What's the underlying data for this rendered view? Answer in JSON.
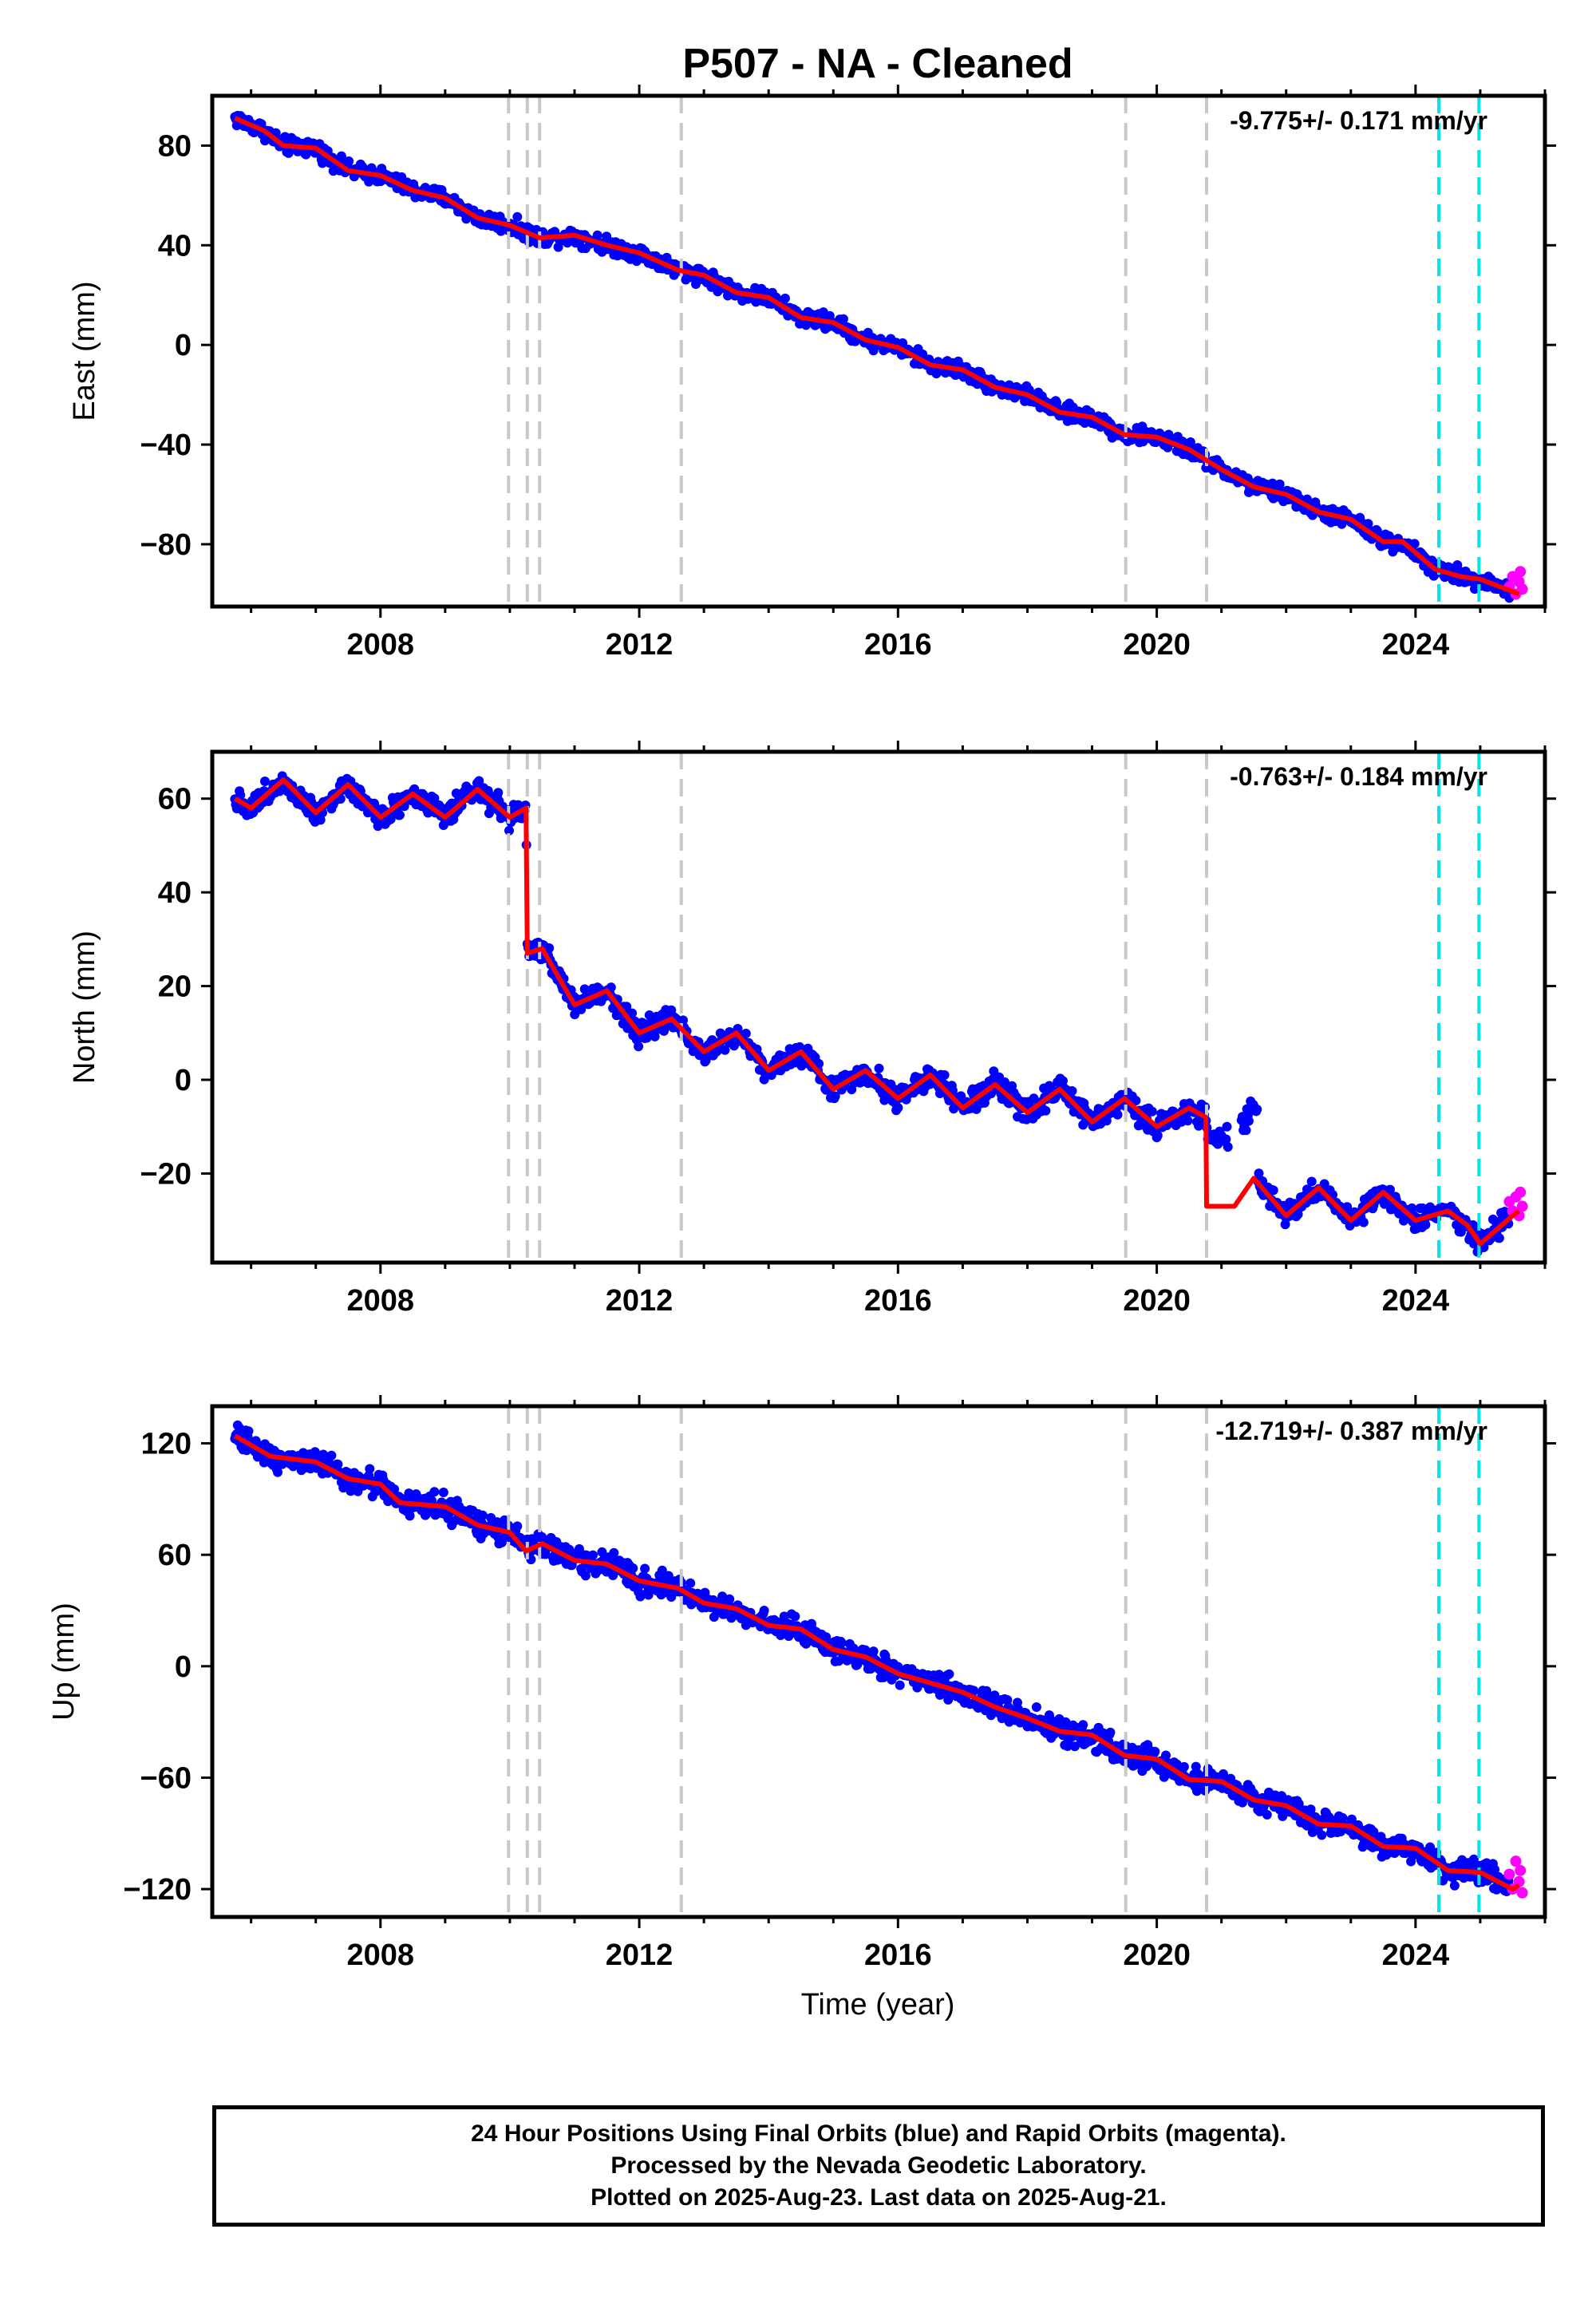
{
  "title": "P507  - NA - Cleaned",
  "xlabel": "Time (year)",
  "colors": {
    "final_orbits": "#0000ff",
    "rapid_orbits": "#ff00ff",
    "model": "#ff0000",
    "equipment_lines": "#c8c8c8",
    "earthquake_lines": "#00e6e6"
  },
  "chart_data": [
    {
      "type": "scatter",
      "panel": "east",
      "ylabel": "East (mm)",
      "rate_label": "-9.775+/- 0.171 mm/yr",
      "xlim": [
        2005.4,
        2026.0
      ],
      "ylim": [
        -105,
        100
      ],
      "x_ticks": [
        2008,
        2012,
        2016,
        2020,
        2024
      ],
      "y_ticks": [
        80,
        40,
        0,
        -40,
        -80
      ],
      "y_tick_labels": [
        "80",
        "40",
        "0",
        "−40",
        "−80"
      ],
      "start": [
        2005.75,
        90
      ],
      "rate": -9.775,
      "noise": 2.0,
      "seasonal_amp": 1.5,
      "steps": [],
      "gray_lines": [
        2009.98,
        2010.27,
        2010.46,
        2012.65,
        2019.52,
        2020.77
      ],
      "cyan_lines": [
        2024.36,
        2024.98
      ],
      "model_points": [
        [
          2005.75,
          91
        ],
        [
          2006.2,
          86
        ],
        [
          2006.5,
          80
        ],
        [
          2007.0,
          79
        ],
        [
          2007.5,
          70
        ],
        [
          2008.0,
          68
        ],
        [
          2008.5,
          62
        ],
        [
          2009.0,
          59
        ],
        [
          2009.5,
          51
        ],
        [
          2010.0,
          48
        ],
        [
          2010.46,
          43
        ],
        [
          2011.0,
          44
        ],
        [
          2011.5,
          40
        ],
        [
          2012.0,
          37
        ],
        [
          2012.6,
          30
        ],
        [
          2013.0,
          28
        ],
        [
          2013.5,
          21
        ],
        [
          2014.0,
          19
        ],
        [
          2014.5,
          11
        ],
        [
          2015.0,
          9
        ],
        [
          2015.5,
          2
        ],
        [
          2016.0,
          -1
        ],
        [
          2016.5,
          -8
        ],
        [
          2017.0,
          -10
        ],
        [
          2017.5,
          -17
        ],
        [
          2018.0,
          -20
        ],
        [
          2018.5,
          -27
        ],
        [
          2019.0,
          -29
        ],
        [
          2019.5,
          -36
        ],
        [
          2020.0,
          -37
        ],
        [
          2020.5,
          -42
        ],
        [
          2021.0,
          -50
        ],
        [
          2021.5,
          -57
        ],
        [
          2022.0,
          -60
        ],
        [
          2022.5,
          -67
        ],
        [
          2023.0,
          -70
        ],
        [
          2023.5,
          -79
        ],
        [
          2023.8,
          -79
        ],
        [
          2024.3,
          -90
        ],
        [
          2024.7,
          -93
        ],
        [
          2025.0,
          -94
        ],
        [
          2025.6,
          -100
        ]
      ],
      "rapid_points": [
        [
          2025.45,
          -97
        ],
        [
          2025.5,
          -93
        ],
        [
          2025.55,
          -100
        ],
        [
          2025.6,
          -95
        ],
        [
          2025.62,
          -91
        ],
        [
          2025.65,
          -98
        ]
      ]
    },
    {
      "type": "scatter",
      "panel": "north",
      "ylabel": "North (mm)",
      "rate_label": "-0.763+/- 0.184 mm/yr",
      "xlim": [
        2005.4,
        2026.0
      ],
      "ylim": [
        -39,
        70
      ],
      "x_ticks": [
        2008,
        2012,
        2016,
        2020,
        2024
      ],
      "y_ticks": [
        60,
        40,
        20,
        0,
        -20
      ],
      "y_tick_labels": [
        "60",
        "40",
        "20",
        "0",
        "−20"
      ],
      "start": [
        2005.75,
        58
      ],
      "rate": -0.763,
      "noise": 1.5,
      "seasonal_amp": 3.5,
      "steps": [
        [
          2010.27,
          -30
        ],
        [
          2020.77,
          -17
        ]
      ],
      "gray_lines": [
        2009.98,
        2010.27,
        2010.46,
        2012.65,
        2019.52,
        2020.77
      ],
      "cyan_lines": [
        2024.36,
        2024.98
      ],
      "model_points": [
        [
          2005.75,
          60
        ],
        [
          2006.0,
          58
        ],
        [
          2006.5,
          64
        ],
        [
          2007.0,
          57
        ],
        [
          2007.5,
          63
        ],
        [
          2008.0,
          56
        ],
        [
          2008.5,
          61
        ],
        [
          2009.0,
          56
        ],
        [
          2009.5,
          62
        ],
        [
          2010.0,
          56
        ],
        [
          2010.25,
          58
        ],
        [
          2010.27,
          27
        ],
        [
          2010.5,
          28
        ],
        [
          2011.0,
          16
        ],
        [
          2011.5,
          19
        ],
        [
          2012.0,
          10
        ],
        [
          2012.5,
          13
        ],
        [
          2013.0,
          6
        ],
        [
          2013.5,
          10
        ],
        [
          2014.0,
          2
        ],
        [
          2014.5,
          6
        ],
        [
          2015.0,
          -2
        ],
        [
          2015.5,
          2
        ],
        [
          2016.0,
          -4
        ],
        [
          2016.5,
          1
        ],
        [
          2017.0,
          -6
        ],
        [
          2017.5,
          -1
        ],
        [
          2018.0,
          -7
        ],
        [
          2018.5,
          -2
        ],
        [
          2019.0,
          -9
        ],
        [
          2019.5,
          -4
        ],
        [
          2020.0,
          -10
        ],
        [
          2020.5,
          -6
        ],
        [
          2020.76,
          -8
        ],
        [
          2020.77,
          -27
        ],
        [
          2021.2,
          -27
        ],
        [
          2021.5,
          -21
        ],
        [
          2022.0,
          -29
        ],
        [
          2022.5,
          -23
        ],
        [
          2023.0,
          -30
        ],
        [
          2023.5,
          -24
        ],
        [
          2024.0,
          -30
        ],
        [
          2024.5,
          -28
        ],
        [
          2024.8,
          -31
        ],
        [
          2025.0,
          -35
        ],
        [
          2025.5,
          -29
        ],
        [
          2025.6,
          -28
        ]
      ],
      "rapid_points": [
        [
          2025.45,
          -26
        ],
        [
          2025.5,
          -28
        ],
        [
          2025.55,
          -25
        ],
        [
          2025.6,
          -29
        ],
        [
          2025.62,
          -24
        ],
        [
          2025.65,
          -27
        ]
      ]
    },
    {
      "type": "scatter",
      "panel": "up",
      "ylabel": "Up (mm)",
      "rate_label": "-12.719+/- 0.387 mm/yr",
      "xlim": [
        2005.4,
        2026.0
      ],
      "ylim": [
        -135,
        140
      ],
      "x_ticks": [
        2008,
        2012,
        2016,
        2020,
        2024
      ],
      "y_ticks": [
        120,
        60,
        0,
        -60,
        -120
      ],
      "y_tick_labels": [
        "120",
        "60",
        "0",
        "−60",
        "−120"
      ],
      "start": [
        2005.75,
        127
      ],
      "rate": -12.719,
      "noise": 4.0,
      "seasonal_amp": 3.0,
      "steps": [],
      "gray_lines": [
        2009.98,
        2010.27,
        2010.46,
        2012.65,
        2019.52,
        2020.77
      ],
      "cyan_lines": [
        2024.36,
        2024.98
      ],
      "model_points": [
        [
          2005.75,
          124
        ],
        [
          2006.3,
          113
        ],
        [
          2007.0,
          110
        ],
        [
          2007.5,
          101
        ],
        [
          2008.0,
          98
        ],
        [
          2008.3,
          88
        ],
        [
          2009.0,
          86
        ],
        [
          2009.5,
          76
        ],
        [
          2010.0,
          72
        ],
        [
          2010.25,
          62
        ],
        [
          2010.5,
          66
        ],
        [
          2011.0,
          57
        ],
        [
          2011.5,
          55
        ],
        [
          2012.0,
          46
        ],
        [
          2012.6,
          42
        ],
        [
          2013.0,
          34
        ],
        [
          2013.5,
          31
        ],
        [
          2014.0,
          22
        ],
        [
          2014.5,
          20
        ],
        [
          2015.0,
          9
        ],
        [
          2015.5,
          5
        ],
        [
          2016.0,
          -4
        ],
        [
          2016.5,
          -9
        ],
        [
          2017.0,
          -14
        ],
        [
          2017.5,
          -22
        ],
        [
          2018.0,
          -28
        ],
        [
          2018.5,
          -35
        ],
        [
          2019.0,
          -37
        ],
        [
          2019.5,
          -48
        ],
        [
          2020.0,
          -50
        ],
        [
          2020.5,
          -61
        ],
        [
          2021.0,
          -62
        ],
        [
          2021.5,
          -72
        ],
        [
          2022.0,
          -75
        ],
        [
          2022.5,
          -85
        ],
        [
          2023.0,
          -86
        ],
        [
          2023.5,
          -97
        ],
        [
          2024.0,
          -98
        ],
        [
          2024.5,
          -110
        ],
        [
          2025.0,
          -111
        ],
        [
          2025.5,
          -120
        ],
        [
          2025.6,
          -118
        ]
      ],
      "rapid_points": [
        [
          2025.45,
          -112
        ],
        [
          2025.5,
          -120
        ],
        [
          2025.55,
          -105
        ],
        [
          2025.6,
          -116
        ],
        [
          2025.62,
          -110
        ],
        [
          2025.65,
          -122
        ]
      ]
    }
  ],
  "footer": {
    "line1": "24 Hour Positions Using Final Orbits (blue) and Rapid Orbits (magenta).",
    "line2": "Processed by the Nevada Geodetic Laboratory.",
    "line3": "Plotted on 2025-Aug-23. Last data on 2025-Aug-21."
  }
}
